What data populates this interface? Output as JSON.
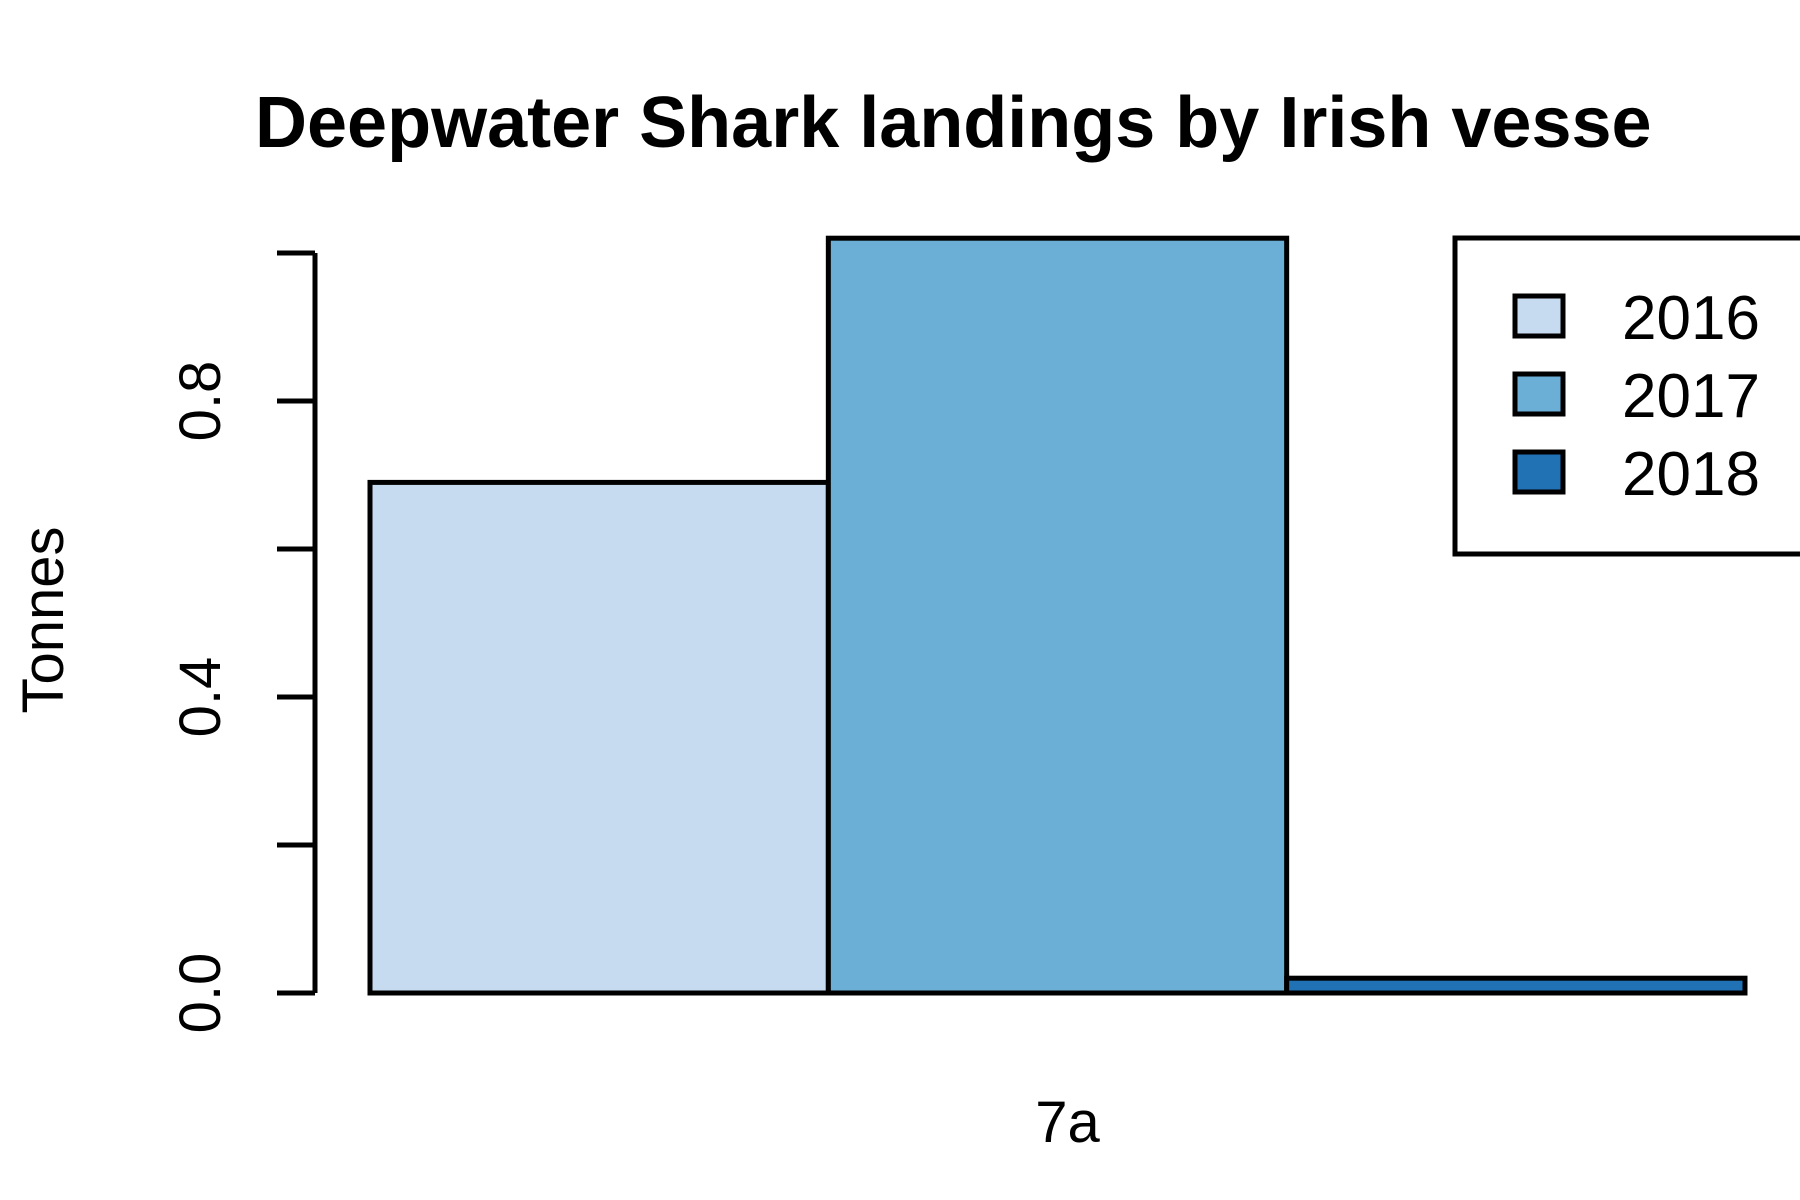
{
  "chart_data": {
    "type": "bar",
    "title": "Deepwater Shark landings by Irish vesse",
    "xlabel": "",
    "ylabel": "Tonnes",
    "categories": [
      "7a"
    ],
    "series": [
      {
        "name": "2016",
        "values": [
          0.69
        ],
        "color": "#c6dbef"
      },
      {
        "name": "2017",
        "values": [
          1.02
        ],
        "color": "#6baed6"
      },
      {
        "name": "2018",
        "values": [
          0.02
        ],
        "color": "#2171b5"
      }
    ],
    "ylim": [
      0,
      1.0
    ],
    "yticks": [
      0.0,
      0.2,
      0.4,
      0.6,
      0.8,
      1.0
    ],
    "ytick_labels": [
      "0.0",
      "",
      "0.4",
      "",
      "0.8",
      ""
    ],
    "legend_position": "top-right",
    "grid": false
  }
}
